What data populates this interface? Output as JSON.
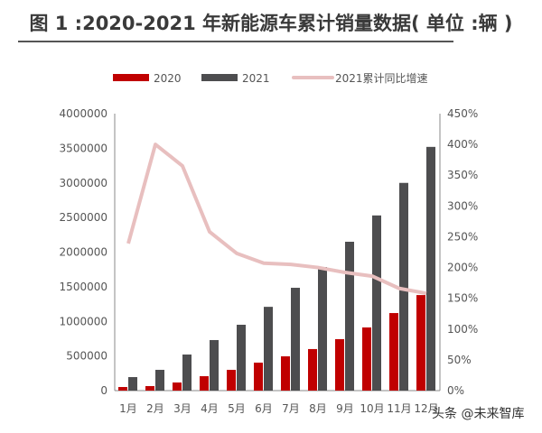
{
  "chart_data": {
    "type": "bar",
    "title": "图 1 :2020-2021 年新能源车累计销量数据( 单位 :辆 )",
    "categories": [
      "1月",
      "2月",
      "3月",
      "4月",
      "5月",
      "6月",
      "7月",
      "8月",
      "9月",
      "10月",
      "11月",
      "12月"
    ],
    "series": [
      {
        "name": "2020",
        "type": "bar",
        "axis": "left",
        "color": "#c00000",
        "values": [
          52000,
          65000,
          117000,
          208000,
          300000,
          404000,
          495000,
          600000,
          743000,
          912000,
          1120000,
          1380000
        ]
      },
      {
        "name": "2021",
        "type": "bar",
        "axis": "left",
        "color": "#4d4d4f",
        "values": [
          195000,
          300000,
          521000,
          730000,
          951000,
          1210000,
          1485000,
          1785000,
          2150000,
          2530000,
          3000000,
          3520000
        ]
      },
      {
        "name": "2021累计同比增速",
        "type": "line",
        "axis": "right",
        "color": "#e8bfbf",
        "values": [
          239,
          400,
          365,
          258,
          223,
          207,
          205,
          200,
          192,
          186,
          166,
          158
        ]
      }
    ],
    "ylim": [
      0,
      4000000
    ],
    "y_ticks": [
      "0",
      "500000",
      "1000000",
      "1500000",
      "2000000",
      "2500000",
      "3000000",
      "3500000",
      "4000000"
    ],
    "y2lim": [
      0,
      450
    ],
    "y2_ticks": [
      "0%",
      "50%",
      "100%",
      "150%",
      "200%",
      "250%",
      "300%",
      "350%",
      "400%",
      "450%"
    ],
    "legend": "top",
    "grid": false
  },
  "watermark": "头条 @未来智库"
}
